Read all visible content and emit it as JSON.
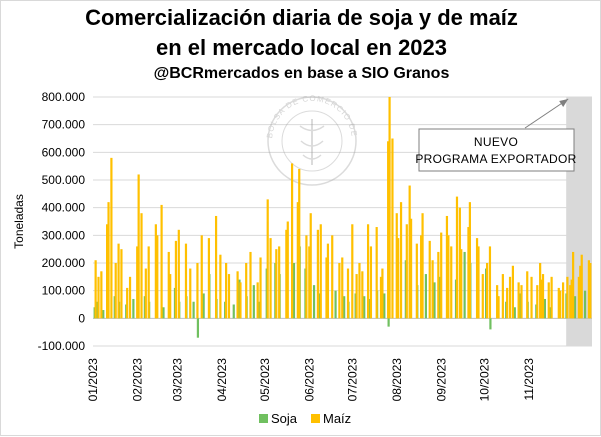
{
  "titles": {
    "line1": "Comercialización diaria de soja y de maíz",
    "line2": "en el mercado local en 2023",
    "line3": "@BCRmercados en base a SIO Granos"
  },
  "watermark_text": "BOLSA DE COMERCIO DE ROSARIO",
  "colors": {
    "soja": "#70c060",
    "maiz": "#ffc000",
    "shade": "#d9d9d9",
    "grid": "#d9d9d9"
  },
  "chart_data": {
    "type": "bar",
    "title": "Comercialización diaria de soja y de maíz en el mercado local en 2023",
    "subtitle": "@BCRmercados en base a SIO Granos",
    "ylabel": "Toneladas",
    "xlabel": "",
    "ylim": [
      -100000,
      800000
    ],
    "yticks": [
      -100000,
      0,
      100000,
      200000,
      300000,
      400000,
      500000,
      600000,
      700000,
      800000
    ],
    "ytick_labels": [
      "-100.000",
      "0",
      "100.000",
      "200.000",
      "300.000",
      "400.000",
      "500.000",
      "600.000",
      "700.000",
      "800.000"
    ],
    "xtick_labels": [
      "01/2023",
      "02/2023",
      "03/2023",
      "04/2023",
      "05/2023",
      "06/2023",
      "07/2023",
      "08/2023",
      "09/2023",
      "10/2023",
      "11/2023"
    ],
    "x_range": [
      "2023-01-01",
      "2023-12-15"
    ],
    "grid": true,
    "legend_position": "bottom",
    "series": [
      {
        "name": "Soja",
        "color": "#70c060",
        "points": [
          [
            "2023-01-03",
            40000
          ],
          [
            "2023-01-05",
            60000
          ],
          [
            "2023-01-09",
            30000
          ],
          [
            "2023-01-12",
            90000
          ],
          [
            "2023-01-17",
            80000
          ],
          [
            "2023-01-20",
            60000
          ],
          [
            "2023-01-25",
            50000
          ],
          [
            "2023-01-30",
            70000
          ],
          [
            "2023-02-02",
            120000
          ],
          [
            "2023-02-07",
            80000
          ],
          [
            "2023-02-10",
            60000
          ],
          [
            "2023-02-15",
            140000
          ],
          [
            "2023-02-20",
            40000
          ],
          [
            "2023-02-24",
            90000
          ],
          [
            "2023-02-28",
            110000
          ],
          [
            "2023-03-03",
            60000
          ],
          [
            "2023-03-08",
            80000
          ],
          [
            "2023-03-13",
            60000
          ],
          [
            "2023-03-16",
            -70000
          ],
          [
            "2023-03-20",
            90000
          ],
          [
            "2023-03-24",
            160000
          ],
          [
            "2023-03-29",
            70000
          ],
          [
            "2023-04-04",
            60000
          ],
          [
            "2023-04-10",
            50000
          ],
          [
            "2023-04-14",
            140000
          ],
          [
            "2023-04-19",
            80000
          ],
          [
            "2023-04-24",
            120000
          ],
          [
            "2023-04-28",
            60000
          ],
          [
            "2023-05-03",
            180000
          ],
          [
            "2023-05-09",
            200000
          ],
          [
            "2023-05-12",
            160000
          ],
          [
            "2023-05-17",
            230000
          ],
          [
            "2023-05-22",
            200000
          ],
          [
            "2023-05-26",
            260000
          ],
          [
            "2023-05-30",
            180000
          ],
          [
            "2023-06-05",
            120000
          ],
          [
            "2023-06-09",
            90000
          ],
          [
            "2023-06-14",
            130000
          ],
          [
            "2023-06-20",
            100000
          ],
          [
            "2023-06-26",
            80000
          ],
          [
            "2023-06-29",
            60000
          ],
          [
            "2023-07-04",
            90000
          ],
          [
            "2023-07-10",
            80000
          ],
          [
            "2023-07-14",
            70000
          ],
          [
            "2023-07-19",
            100000
          ],
          [
            "2023-07-24",
            90000
          ],
          [
            "2023-07-27",
            -30000
          ],
          [
            "2023-08-02",
            170000
          ],
          [
            "2023-08-08",
            210000
          ],
          [
            "2023-08-11",
            140000
          ],
          [
            "2023-08-16",
            120000
          ],
          [
            "2023-08-22",
            160000
          ],
          [
            "2023-08-28",
            130000
          ],
          [
            "2023-09-01",
            150000
          ],
          [
            "2023-09-06",
            120000
          ],
          [
            "2023-09-12",
            140000
          ],
          [
            "2023-09-18",
            240000
          ],
          [
            "2023-09-22",
            200000
          ],
          [
            "2023-09-27",
            130000
          ],
          [
            "2023-10-03",
            180000
          ],
          [
            "2023-10-06",
            -40000
          ],
          [
            "2023-10-11",
            80000
          ],
          [
            "2023-10-17",
            60000
          ],
          [
            "2023-10-23",
            40000
          ],
          [
            "2023-10-27",
            90000
          ],
          [
            "2023-11-01",
            60000
          ],
          [
            "2023-11-07",
            50000
          ],
          [
            "2023-11-13",
            70000
          ],
          [
            "2023-11-17",
            40000
          ],
          [
            "2023-11-23",
            60000
          ],
          [
            "2023-11-28",
            90000
          ],
          [
            "2023-12-04",
            80000
          ],
          [
            "2023-12-11",
            100000
          ]
        ]
      },
      {
        "name": "Maíz",
        "color": "#ffc000",
        "points": [
          [
            "2023-01-02",
            210000
          ],
          [
            "2023-01-04",
            150000
          ],
          [
            "2023-01-06",
            170000
          ],
          [
            "2023-01-10",
            340000
          ],
          [
            "2023-01-11",
            420000
          ],
          [
            "2023-01-13",
            580000
          ],
          [
            "2023-01-16",
            200000
          ],
          [
            "2023-01-18",
            270000
          ],
          [
            "2023-01-20",
            250000
          ],
          [
            "2023-01-24",
            110000
          ],
          [
            "2023-01-26",
            150000
          ],
          [
            "2023-01-31",
            260000
          ],
          [
            "2023-02-01",
            520000
          ],
          [
            "2023-02-03",
            380000
          ],
          [
            "2023-02-06",
            180000
          ],
          [
            "2023-02-08",
            260000
          ],
          [
            "2023-02-13",
            340000
          ],
          [
            "2023-02-14",
            300000
          ],
          [
            "2023-02-17",
            410000
          ],
          [
            "2023-02-22",
            240000
          ],
          [
            "2023-02-23",
            160000
          ],
          [
            "2023-02-27",
            280000
          ],
          [
            "2023-03-01",
            320000
          ],
          [
            "2023-03-06",
            270000
          ],
          [
            "2023-03-09",
            180000
          ],
          [
            "2023-03-14",
            200000
          ],
          [
            "2023-03-17",
            300000
          ],
          [
            "2023-03-22",
            290000
          ],
          [
            "2023-03-27",
            370000
          ],
          [
            "2023-03-30",
            230000
          ],
          [
            "2023-04-03",
            200000
          ],
          [
            "2023-04-05",
            160000
          ],
          [
            "2023-04-11",
            170000
          ],
          [
            "2023-04-13",
            130000
          ],
          [
            "2023-04-17",
            200000
          ],
          [
            "2023-04-20",
            240000
          ],
          [
            "2023-04-25",
            130000
          ],
          [
            "2023-04-27",
            220000
          ],
          [
            "2023-05-02",
            430000
          ],
          [
            "2023-05-04",
            290000
          ],
          [
            "2023-05-08",
            250000
          ],
          [
            "2023-05-10",
            260000
          ],
          [
            "2023-05-15",
            320000
          ],
          [
            "2023-05-16",
            350000
          ],
          [
            "2023-05-19",
            560000
          ],
          [
            "2023-05-23",
            420000
          ],
          [
            "2023-05-24",
            540000
          ],
          [
            "2023-05-29",
            300000
          ],
          [
            "2023-05-31",
            260000
          ],
          [
            "2023-06-01",
            380000
          ],
          [
            "2023-06-06",
            320000
          ],
          [
            "2023-06-08",
            340000
          ],
          [
            "2023-06-12",
            220000
          ],
          [
            "2023-06-13",
            270000
          ],
          [
            "2023-06-16",
            300000
          ],
          [
            "2023-06-21",
            200000
          ],
          [
            "2023-06-23",
            220000
          ],
          [
            "2023-06-27",
            180000
          ],
          [
            "2023-06-30",
            340000
          ],
          [
            "2023-07-03",
            160000
          ],
          [
            "2023-07-05",
            200000
          ],
          [
            "2023-07-07",
            170000
          ],
          [
            "2023-07-11",
            340000
          ],
          [
            "2023-07-13",
            260000
          ],
          [
            "2023-07-17",
            330000
          ],
          [
            "2023-07-20",
            150000
          ],
          [
            "2023-07-21",
            180000
          ],
          [
            "2023-07-25",
            640000
          ],
          [
            "2023-07-26",
            800000
          ],
          [
            "2023-07-28",
            650000
          ],
          [
            "2023-07-31",
            380000
          ],
          [
            "2023-08-01",
            290000
          ],
          [
            "2023-08-03",
            420000
          ],
          [
            "2023-08-07",
            340000
          ],
          [
            "2023-08-09",
            480000
          ],
          [
            "2023-08-10",
            360000
          ],
          [
            "2023-08-14",
            270000
          ],
          [
            "2023-08-17",
            300000
          ],
          [
            "2023-08-18",
            380000
          ],
          [
            "2023-08-23",
            280000
          ],
          [
            "2023-08-25",
            210000
          ],
          [
            "2023-08-29",
            240000
          ],
          [
            "2023-08-31",
            310000
          ],
          [
            "2023-09-04",
            370000
          ],
          [
            "2023-09-05",
            300000
          ],
          [
            "2023-09-07",
            260000
          ],
          [
            "2023-09-11",
            440000
          ],
          [
            "2023-09-13",
            400000
          ],
          [
            "2023-09-14",
            250000
          ],
          [
            "2023-09-19",
            330000
          ],
          [
            "2023-09-20",
            420000
          ],
          [
            "2023-09-25",
            290000
          ],
          [
            "2023-09-26",
            260000
          ],
          [
            "2023-09-29",
            160000
          ],
          [
            "2023-10-02",
            200000
          ],
          [
            "2023-10-04",
            260000
          ],
          [
            "2023-10-09",
            120000
          ],
          [
            "2023-10-10",
            80000
          ],
          [
            "2023-10-13",
            160000
          ],
          [
            "2023-10-16",
            110000
          ],
          [
            "2023-10-18",
            150000
          ],
          [
            "2023-10-20",
            190000
          ],
          [
            "2023-10-24",
            130000
          ],
          [
            "2023-10-26",
            120000
          ],
          [
            "2023-10-30",
            170000
          ],
          [
            "2023-11-02",
            150000
          ],
          [
            "2023-11-06",
            120000
          ],
          [
            "2023-11-08",
            200000
          ],
          [
            "2023-11-09",
            140000
          ],
          [
            "2023-11-10",
            160000
          ],
          [
            "2023-11-14",
            130000
          ],
          [
            "2023-11-16",
            150000
          ],
          [
            "2023-11-21",
            110000
          ],
          [
            "2023-11-22",
            100000
          ],
          [
            "2023-11-24",
            130000
          ],
          [
            "2023-11-27",
            150000
          ],
          [
            "2023-11-29",
            120000
          ],
          [
            "2023-11-30",
            140000
          ],
          [
            "2023-12-01",
            240000
          ],
          [
            "2023-12-05",
            150000
          ],
          [
            "2023-12-06",
            190000
          ],
          [
            "2023-12-07",
            230000
          ],
          [
            "2023-12-12",
            210000
          ],
          [
            "2023-12-13",
            200000
          ]
        ]
      }
    ],
    "shaded_period": {
      "from": "2023-11-27",
      "to": "2023-12-15"
    },
    "annotations": [
      {
        "text": "NUEVO PROGRAMA EXPORTADOR",
        "lines": [
          "NUEVO",
          "PROGRAMA EXPORTADOR"
        ],
        "points_to": "2023-11-27"
      }
    ]
  }
}
